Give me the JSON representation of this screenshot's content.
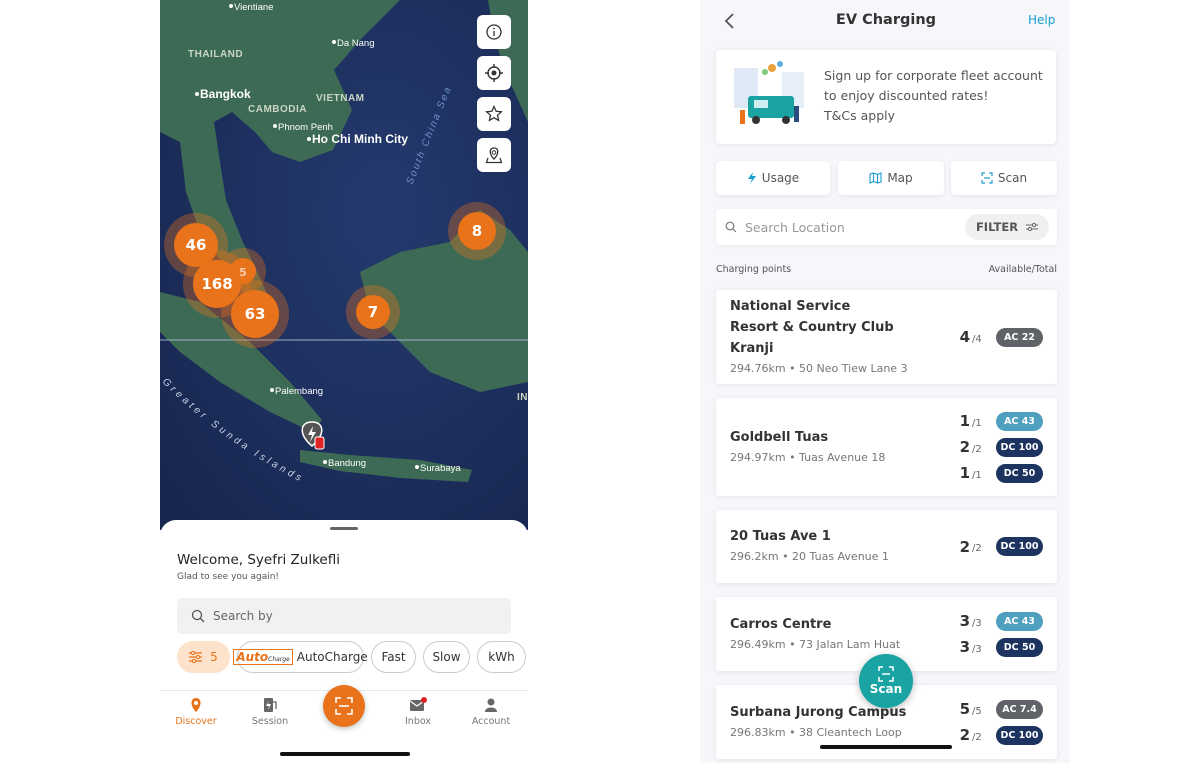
{
  "left_screen": {
    "map": {
      "labels": [
        "Vientiane",
        "Da Nang",
        "THAILAND",
        "VIETNAM",
        "Bangkok",
        "CAMBODIA",
        "Phnom Penh",
        "Ho Chi Minh City",
        "South China Sea",
        "Palembang",
        "Bandung",
        "Surabaya",
        "Greater Sunda Islands",
        "IN"
      ],
      "clusters": [
        46,
        5,
        168,
        63,
        8,
        7
      ]
    },
    "welcome": "Welcome, Syefri Zulkefli",
    "subtitle": "Glad to see you again!",
    "search_placeholder": "Search by",
    "filter_count": 5,
    "autocharge_logo": [
      "Auto",
      "Charge"
    ],
    "chips": [
      "AutoCharge",
      "Fast",
      "Slow",
      "kWh"
    ],
    "nav": [
      "Discover",
      "Session",
      "Inbox",
      "Account"
    ]
  },
  "right_screen": {
    "title": "EV Charging",
    "help": "Help",
    "banner": {
      "text": "Sign up for corporate fleet account to enjoy discounted rates!",
      "note": "T&Cs apply"
    },
    "tabs": [
      "Usage",
      "Map",
      "Scan"
    ],
    "search_placeholder": "Search Location",
    "filter": "FILTER",
    "list_label": "Charging points",
    "list_right_label": "Available/Total",
    "stations": [
      {
        "name": "National Service Resort & Country Club Kranji",
        "detail": "294.76km • 50 Neo Tiew Lane 3",
        "connectors": [
          {
            "available": 4,
            "total": "/4",
            "type": "AC 22",
            "color": "#5f6368"
          }
        ]
      },
      {
        "name": "Goldbell Tuas",
        "detail": "294.97km • Tuas Avenue 18",
        "connectors": [
          {
            "available": 1,
            "total": "/1",
            "type": "AC 43",
            "color": "#4f9fbf"
          },
          {
            "available": 2,
            "total": "/2",
            "type": "DC 100",
            "color": "#1d3461"
          },
          {
            "available": 1,
            "total": "/1",
            "type": "DC 50",
            "color": "#1d3461"
          }
        ]
      },
      {
        "name": "20 Tuas Ave 1",
        "detail": "296.2km • 20 Tuas Avenue 1",
        "connectors": [
          {
            "available": 2,
            "total": "/2",
            "type": "DC 100",
            "color": "#1d3461"
          }
        ]
      },
      {
        "name": "Carros Centre",
        "detail": "296.49km • 73 Jalan Lam Huat",
        "connectors": [
          {
            "available": 3,
            "total": "/3",
            "type": "AC 43",
            "color": "#4f9fbf"
          },
          {
            "available": 3,
            "total": "/3",
            "type": "DC 50",
            "color": "#1d3461"
          }
        ]
      },
      {
        "name": "Surbana Jurong Campus",
        "detail": "296.83km • 38 Cleantech Loop",
        "connectors": [
          {
            "available": 5,
            "total": "/5",
            "type": "AC 7.4",
            "color": "#5f6368"
          },
          {
            "available": 2,
            "total": "/2",
            "type": "DC 100",
            "color": "#1d3461"
          }
        ]
      }
    ],
    "scan_button": "Scan"
  }
}
